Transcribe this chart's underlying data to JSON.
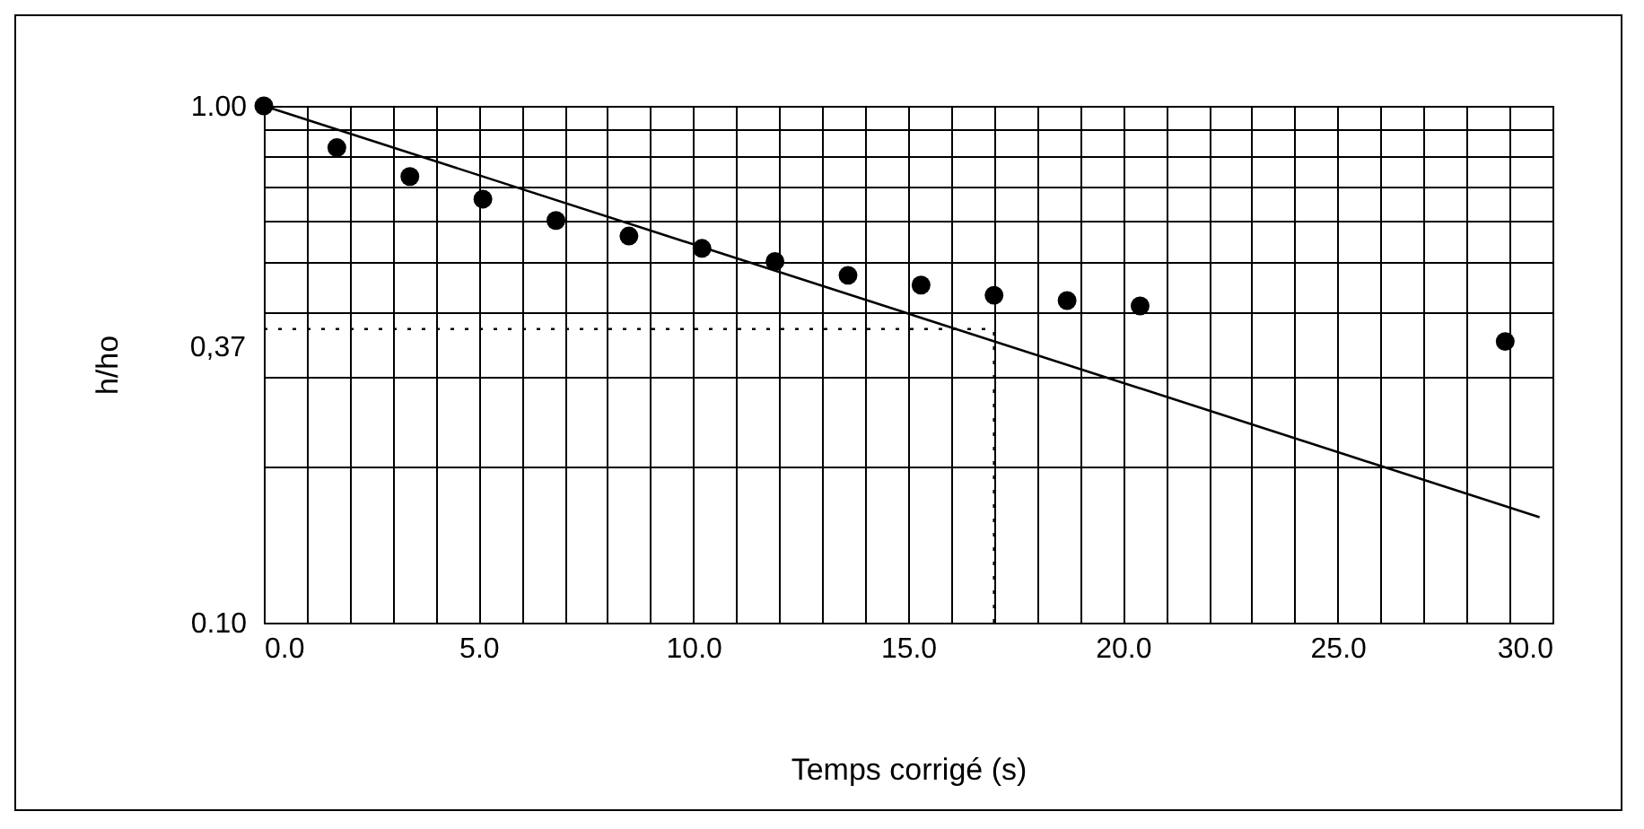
{
  "chart_data": {
    "type": "scatter",
    "xlabel": "Temps corrigé (s)",
    "ylabel": "h/ho",
    "log": "y",
    "grid": true,
    "marker": "circle",
    "xlim": [
      0,
      30
    ],
    "ylim": [
      0.1,
      1.0
    ],
    "xticks": [
      {
        "value": 0,
        "label": "0.0"
      },
      {
        "value": 1,
        "label": null
      },
      {
        "value": 2,
        "label": null
      },
      {
        "value": 3,
        "label": null
      },
      {
        "value": 4,
        "label": null
      },
      {
        "value": 5,
        "label": "5.0"
      },
      {
        "value": 6,
        "label": null
      },
      {
        "value": 7,
        "label": null
      },
      {
        "value": 8,
        "label": null
      },
      {
        "value": 9,
        "label": null
      },
      {
        "value": 10,
        "label": "10.0"
      },
      {
        "value": 11,
        "label": null
      },
      {
        "value": 12,
        "label": null
      },
      {
        "value": 13,
        "label": null
      },
      {
        "value": 14,
        "label": null
      },
      {
        "value": 15,
        "label": "15.0"
      },
      {
        "value": 16,
        "label": null
      },
      {
        "value": 17,
        "label": null
      },
      {
        "value": 18,
        "label": null
      },
      {
        "value": 19,
        "label": null
      },
      {
        "value": 20,
        "label": "20.0"
      },
      {
        "value": 21,
        "label": null
      },
      {
        "value": 22,
        "label": null
      },
      {
        "value": 23,
        "label": null
      },
      {
        "value": 24,
        "label": null
      },
      {
        "value": 25,
        "label": "25.0"
      },
      {
        "value": 26,
        "label": null
      },
      {
        "value": 27,
        "label": null
      },
      {
        "value": 28,
        "label": null
      },
      {
        "value": 29,
        "label": null
      },
      {
        "value": 30,
        "label": "30.0"
      }
    ],
    "yticks": [
      {
        "value": 0.1,
        "label": "0.10"
      },
      {
        "value": 0.2,
        "label": null
      },
      {
        "value": 0.3,
        "label": null
      },
      {
        "value": 0.4,
        "label": null
      },
      {
        "value": 0.5,
        "label": null
      },
      {
        "value": 0.6,
        "label": null
      },
      {
        "value": 0.7,
        "label": null
      },
      {
        "value": 0.8,
        "label": null
      },
      {
        "value": 0.9,
        "label": null
      },
      {
        "value": 1.0,
        "label": "1.00"
      }
    ],
    "series": [
      {
        "color": "#000000",
        "x": [
          0,
          1.7,
          3.4,
          5.1,
          6.8,
          8.5,
          10.2,
          11.9,
          13.6,
          15.3,
          17.0,
          18.7,
          20.4,
          28.9
        ],
        "values": [
          1.0,
          0.83,
          0.73,
          0.66,
          0.6,
          0.56,
          0.53,
          0.5,
          0.47,
          0.45,
          0.43,
          0.42,
          0.41,
          0.35
        ]
      },
      {
        "type": "line",
        "color": "#000000",
        "line_style": "solid",
        "marker": "none",
        "x": [
          0,
          29.7
        ],
        "values": [
          1.0,
          0.16
        ]
      }
    ],
    "ref_lines": [
      {
        "axis": "y",
        "value": 0.37,
        "label": "0,37",
        "line_style": "dotted"
      },
      {
        "axis": "x",
        "value": 17.0,
        "line_style": "dotted"
      }
    ]
  }
}
